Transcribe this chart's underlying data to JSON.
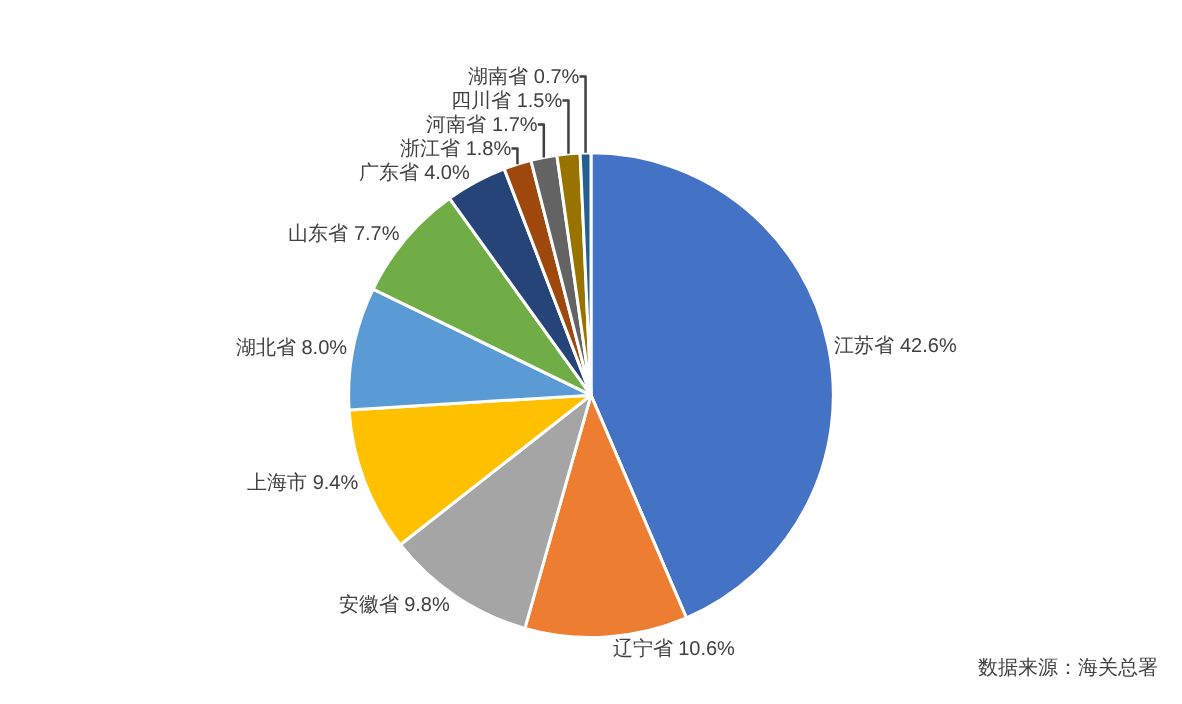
{
  "chart_data": {
    "type": "pie",
    "categories": [
      "江苏省",
      "辽宁省",
      "安徽省",
      "上海市",
      "湖北省",
      "山东省",
      "广东省",
      "浙江省",
      "河南省",
      "四川省",
      "湖南省"
    ],
    "values": [
      42.6,
      10.6,
      9.8,
      9.4,
      8.0,
      7.7,
      4.0,
      1.8,
      1.7,
      1.5,
      0.7
    ],
    "value_labels": [
      "42.6%",
      "10.6%",
      "9.8%",
      "9.4%",
      "8.0%",
      "7.7%",
      "4.0%",
      "1.8%",
      "1.7%",
      "1.5%",
      "0.7%"
    ],
    "colors": [
      "#4472c4",
      "#ed7d31",
      "#a5a5a5",
      "#ffc000",
      "#5b9bd5",
      "#70ad47",
      "#264478",
      "#9e480e",
      "#636363",
      "#997300",
      "#255e91"
    ],
    "legend": false,
    "annotations": [
      "数据来源：海关总署"
    ]
  }
}
